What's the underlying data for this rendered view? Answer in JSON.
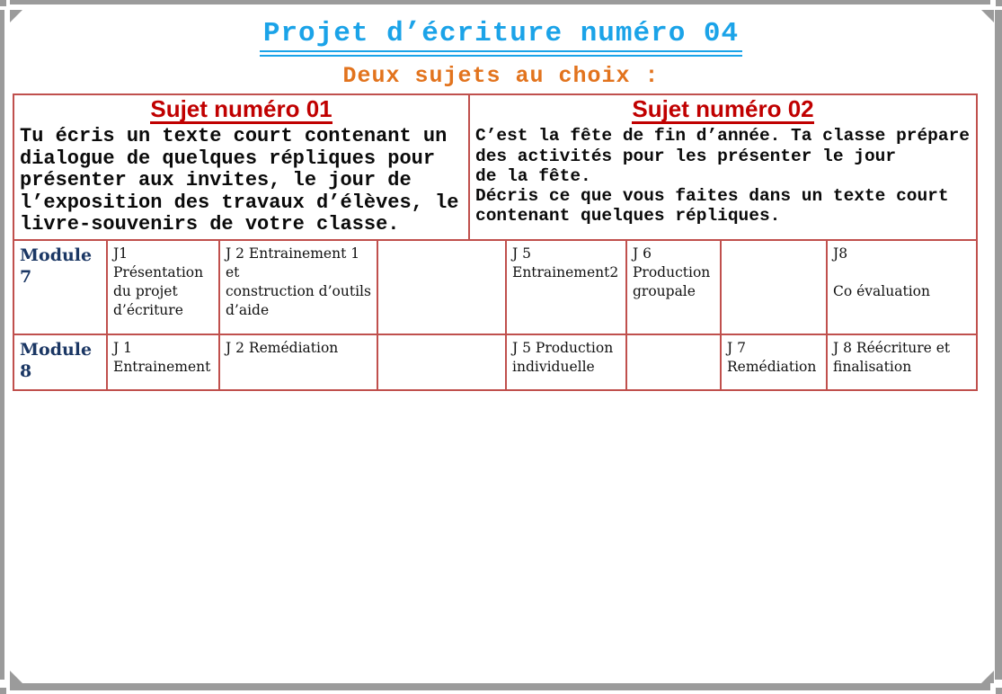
{
  "doc": {
    "title": "Projet d’écriture numéro 04",
    "subtitle": "Deux sujets au choix :"
  },
  "subjects": [
    {
      "header": "Sujet numéro 01",
      "body": "Tu écris un texte court contenant un\ndialogue de quelques répliques pour\nprésenter aux invites, le jour de\nl’exposition des travaux d’élèves, le\nlivre-souvenirs de votre classe."
    },
    {
      "header": "Sujet numéro 02",
      "body": "C’est la fête de fin d’année. Ta classe prépare\ndes activités pour les présenter le jour\nde la fête.\nDécris ce que vous faites dans un texte court\ncontenant quelques répliques."
    }
  ],
  "schedule": {
    "rows": [
      {
        "module": "Module 7",
        "cells": [
          "J1\nPrésentation\ndu projet\nd’écriture",
          "J 2 Entrainement 1 et\nconstruction d’outils\nd’aide",
          "",
          "J 5\nEntrainement2",
          "J 6\nProduction\ngroupale",
          "",
          "J8\n\nCo évaluation"
        ]
      },
      {
        "module": "Module 8",
        "cells": [
          "J 1\nEntrainement",
          "J 2 Remédiation",
          "",
          "J 5 Production\nindividuelle",
          "",
          "J 7\nRemédiation",
          "J 8 Réécriture et\nfinalisation"
        ]
      }
    ]
  },
  "colors": {
    "title_cyan": "#1ba3e8",
    "subtitle_orange": "#e2731d",
    "subject_header_red": "#c00000",
    "table_border_red": "#c0504d",
    "module_navy": "#1b3764",
    "frame_gray": "#9b9b9b"
  }
}
